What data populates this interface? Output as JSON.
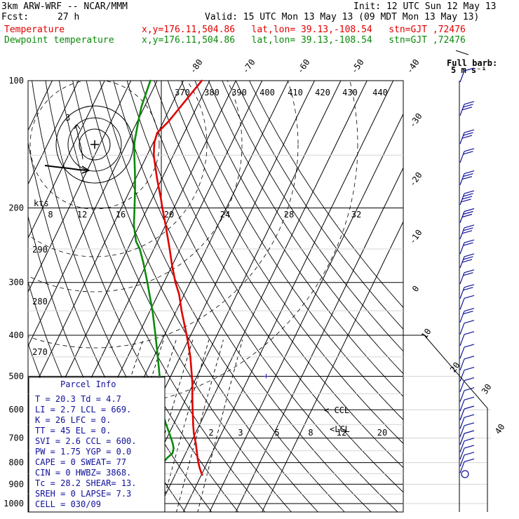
{
  "header": {
    "model": "3km ARW-WRF -- NCAR/MMM",
    "init": "Init: 12 UTC Sun 12 May 13",
    "fcst_label": "Fcst:",
    "fcst_value": "27 h",
    "valid": "Valid: 15 UTC Mon 13 May 13 (09 MDT Mon 13 May 13)",
    "temp_label": "Temperature",
    "temp_loc": "x,y=176.11,504.86   lat,lon= 39.13,-108.54   stn=GJT ,72476",
    "dew_label": "Dewpoint temperature",
    "dew_loc": "x,y=176.11,504.86   lat,lon= 39.13,-108.54   stn=GJT ,72476"
  },
  "barb_legend": {
    "line1": "Full barb:",
    "line2": "5 m s⁻¹"
  },
  "parcel_info": {
    "title": "Parcel Info",
    "rows": [
      "T   =   20.3  Td  =   4.7",
      "LI  =    2.7  LCL =  669.",
      "K   =     26  LFC =    0.",
      "TT  =     45  EL  =    0.",
      "SVI =    2.6  CCL =  600.",
      "PW  =   1.75  YGP =   0.0",
      "CAPE =     0  SWEAT=   77",
      "CIN  =     0  HWBZ= 3868.",
      "Tc  =   28.2  SHEAR=   13.",
      "SREH =     0  LAPSE=   7.3",
      "CELL = 030/09"
    ]
  },
  "chart_data": {
    "type": "line",
    "title": "",
    "y_axis": "pressure (hPa)",
    "pressure_levels": [
      100,
      200,
      300,
      400,
      500,
      600,
      700,
      800,
      900,
      1000
    ],
    "ylim": [
      1000,
      100
    ],
    "series": [
      {
        "name": "Temperature",
        "color": "#e00000",
        "points": [
          [
            855,
            20.3
          ],
          [
            840,
            19.2
          ],
          [
            820,
            17.8
          ],
          [
            800,
            16.6
          ],
          [
            780,
            15.4
          ],
          [
            760,
            14.3
          ],
          [
            720,
            12.0
          ],
          [
            700,
            10.6
          ],
          [
            680,
            9.3
          ],
          [
            650,
            7.5
          ],
          [
            600,
            4.6
          ],
          [
            560,
            2.1
          ],
          [
            520,
            -0.4
          ],
          [
            500,
            -1.9
          ],
          [
            450,
            -6.1
          ],
          [
            420,
            -9.2
          ],
          [
            400,
            -11.5
          ],
          [
            380,
            -14.0
          ],
          [
            350,
            -18.0
          ],
          [
            320,
            -22.0
          ],
          [
            300,
            -25.6
          ],
          [
            270,
            -30.6
          ],
          [
            250,
            -34.0
          ],
          [
            220,
            -39.9
          ],
          [
            200,
            -44.4
          ],
          [
            190,
            -46.7
          ],
          [
            170,
            -52.0
          ],
          [
            150,
            -57.5
          ],
          [
            140,
            -59.6
          ],
          [
            133,
            -60.3
          ],
          [
            125,
            -58.1
          ],
          [
            115,
            -56.2
          ],
          [
            100,
            -53.0
          ]
        ]
      },
      {
        "name": "Dewpoint temperature",
        "color": "#0a8a0a",
        "points": [
          [
            855,
            4.7
          ],
          [
            820,
            4.0
          ],
          [
            800,
            3.2
          ],
          [
            780,
            3.8
          ],
          [
            760,
            5.0
          ],
          [
            740,
            4.5
          ],
          [
            720,
            3.2
          ],
          [
            700,
            1.6
          ],
          [
            680,
            -0.1
          ],
          [
            650,
            -2.8
          ],
          [
            600,
            -7.3
          ],
          [
            550,
            -10.6
          ],
          [
            500,
            -14.2
          ],
          [
            450,
            -18.5
          ],
          [
            400,
            -23.4
          ],
          [
            350,
            -29.1
          ],
          [
            300,
            -36.3
          ],
          [
            270,
            -41.4
          ],
          [
            250,
            -45.4
          ],
          [
            240,
            -48.2
          ],
          [
            220,
            -52.0
          ],
          [
            200,
            -55.0
          ],
          [
            180,
            -58.4
          ],
          [
            165,
            -61.4
          ],
          [
            150,
            -64.9
          ],
          [
            140,
            -67.2
          ],
          [
            125,
            -69.6
          ],
          [
            115,
            -71.2
          ],
          [
            100,
            -72.6
          ]
        ]
      }
    ],
    "isotherm_labels": [
      "-80",
      "-70",
      "-60",
      "-50",
      "-40",
      "-30",
      "-20",
      "-10",
      "0",
      "10",
      "20",
      "30",
      "40"
    ],
    "isotherm_values": [
      -80,
      -70,
      -60,
      -50,
      -40,
      -30,
      -20,
      -10,
      0,
      10,
      20,
      30,
      40
    ],
    "dry_adiabat_labels": [
      "370",
      "380",
      "390",
      "400",
      "410",
      "420",
      "430",
      "440",
      "290",
      "280",
      "270"
    ],
    "mixing_ratio_labels": [
      "2",
      "3",
      "5",
      "8",
      "12",
      "20"
    ],
    "hodograph": {
      "speed_unit": "kts",
      "ring_labels": [
        "8",
        "12",
        "16",
        "20",
        "24",
        "28",
        "32"
      ],
      "direction_marker": "3"
    },
    "lcl_labels": [
      "< CCL",
      "<LCL"
    ],
    "freezing_marker": "+",
    "wind_barbs": [
      {
        "p": 100,
        "speed": 5
      },
      {
        "p": 120,
        "speed": 15
      },
      {
        "p": 140,
        "speed": 15
      },
      {
        "p": 155,
        "speed": 10
      },
      {
        "p": 175,
        "speed": 15
      },
      {
        "p": 195,
        "speed": 20
      },
      {
        "p": 215,
        "speed": 15
      },
      {
        "p": 235,
        "speed": 15
      },
      {
        "p": 255,
        "speed": 10
      },
      {
        "p": 275,
        "speed": 15
      },
      {
        "p": 300,
        "speed": 10
      },
      {
        "p": 325,
        "speed": 10
      },
      {
        "p": 345,
        "speed": 5
      },
      {
        "p": 370,
        "speed": 10
      },
      {
        "p": 395,
        "speed": 5
      },
      {
        "p": 420,
        "speed": 5
      },
      {
        "p": 450,
        "speed": 5
      },
      {
        "p": 480,
        "speed": 5
      },
      {
        "p": 510,
        "speed": 5
      },
      {
        "p": 540,
        "speed": 5
      },
      {
        "p": 570,
        "speed": 5
      },
      {
        "p": 600,
        "speed": 5
      },
      {
        "p": 630,
        "speed": 5
      },
      {
        "p": 660,
        "speed": 5
      },
      {
        "p": 690,
        "speed": 5
      },
      {
        "p": 720,
        "speed": 5
      },
      {
        "p": 750,
        "speed": 5
      },
      {
        "p": 780,
        "speed": 5
      },
      {
        "p": 810,
        "speed": 5
      },
      {
        "p": 840,
        "speed": 5
      }
    ]
  }
}
